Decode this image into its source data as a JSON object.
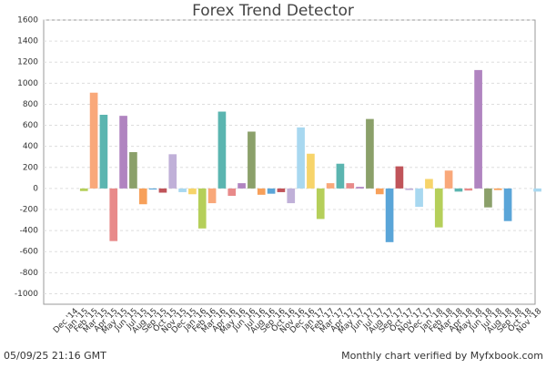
{
  "chart_data": {
    "type": "bar",
    "title": "Forex Trend Detector",
    "categories": [
      "Dec '14",
      "Jan '15",
      "Feb '15",
      "Mar '15",
      "Apr '15",
      "May '15",
      "Jun '15",
      "Jul '15",
      "Aug '15",
      "Sep '15",
      "Oct '15",
      "Nov '15",
      "Dec '15",
      "Jan '16",
      "Feb '16",
      "Mar '16",
      "Apr '16",
      "May '16",
      "Jun '16",
      "Jul '16",
      "Aug '16",
      "Sep '16",
      "Oct '16",
      "Nov '16",
      "Dec '16",
      "Jan '17",
      "Feb '17",
      "Mar '17",
      "Apr '17",
      "May '17",
      "Jun '17",
      "Jul '17",
      "Aug '17",
      "Sep '17",
      "Oct '17",
      "Nov '17",
      "Dec '17",
      "Jan '18",
      "Feb '18",
      "Mar '18",
      "Apr '18",
      "May '18",
      "Jun '18",
      "Jul '18",
      "Aug '18",
      "Sep '18",
      "Oct '18",
      "Nov '18"
    ],
    "values": [
      0,
      -25,
      910,
      700,
      -500,
      690,
      345,
      -150,
      -10,
      -40,
      325,
      -35,
      -55,
      -380,
      -140,
      730,
      -70,
      50,
      540,
      -60,
      -50,
      -35,
      -140,
      580,
      330,
      -290,
      50,
      235,
      50,
      15,
      660,
      -55,
      -510,
      210,
      -15,
      -175,
      90,
      -370,
      170,
      -30,
      -20,
      1125,
      -180,
      -15,
      -310,
      0,
      0,
      -30
    ],
    "palette": [
      "#f7d46a",
      "#b5cf5a",
      "#f9a87a",
      "#5bb5b0",
      "#e88a8a",
      "#b084c0",
      "#8ba06a",
      "#f7a05a",
      "#5aa5d8",
      "#c0545a",
      "#c0b0d8",
      "#a8d8f0"
    ],
    "ylim": [
      -1100,
      1600
    ],
    "yticks": [
      -1000,
      -800,
      -600,
      -400,
      -200,
      0,
      200,
      400,
      600,
      800,
      1000,
      1200,
      1400,
      1600
    ],
    "grid": true,
    "footer_left": "05/09/25 21:16 GMT",
    "footer_right": "Monthly chart verified by Myfxbook.com"
  }
}
